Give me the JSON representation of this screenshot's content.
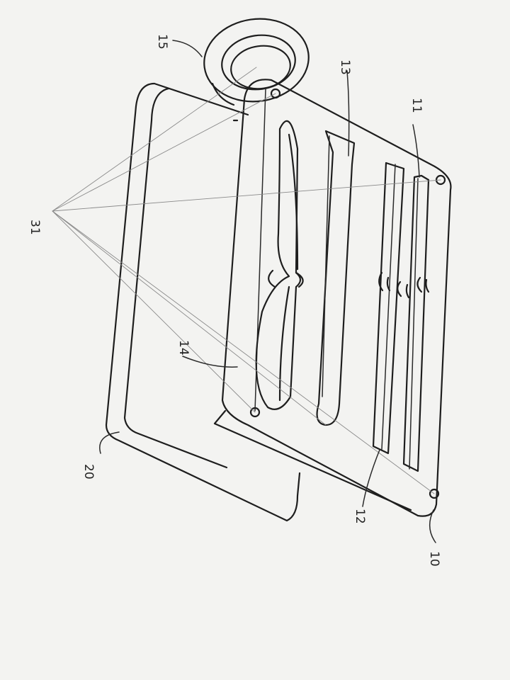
{
  "diagram": {
    "labels": {
      "plate_rim": "10",
      "pin_slot_outer": "11",
      "pin_slot_inner": "12",
      "long_slot": "13",
      "figure_eight_opening": "14",
      "ring": "15",
      "base_tray": "20",
      "screw_holes": "31"
    }
  },
  "colors": {
    "ink": "#1e1e1e",
    "paper": "#f3f3f1",
    "construction_lines": "#8a8a8a"
  }
}
